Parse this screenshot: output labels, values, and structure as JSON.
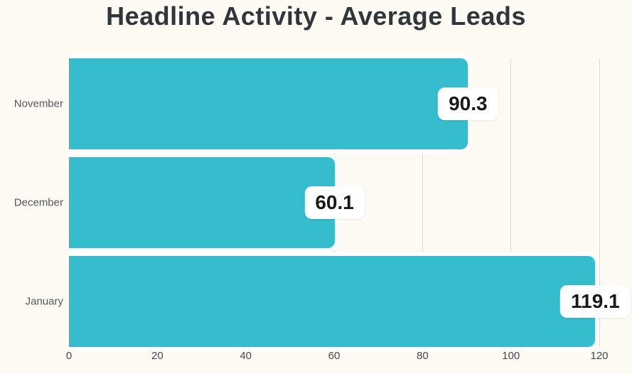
{
  "title": "Headline Activity - Average Leads",
  "chart_data": {
    "type": "bar",
    "orientation": "horizontal",
    "title": "Headline Activity - Average Leads",
    "categories": [
      "November",
      "December",
      "January"
    ],
    "values": [
      90.3,
      60.1,
      119.1
    ],
    "value_labels": [
      "90.3",
      "60.1",
      "119.1"
    ],
    "xlabel": "",
    "ylabel": "",
    "xlim": [
      0,
      120
    ],
    "x_ticks": [
      0,
      20,
      40,
      60,
      80,
      100,
      120
    ],
    "grid": "vertical-only",
    "legend": "none",
    "colors": {
      "bar": "#35bccd",
      "background": "#fdfaf3",
      "gridline": "#dcdcd4",
      "title_text": "#31363b",
      "tick_text": "#44494e",
      "category_text": "#54585d",
      "value_text": "#17191b",
      "value_bubble": "#ffffff"
    }
  }
}
